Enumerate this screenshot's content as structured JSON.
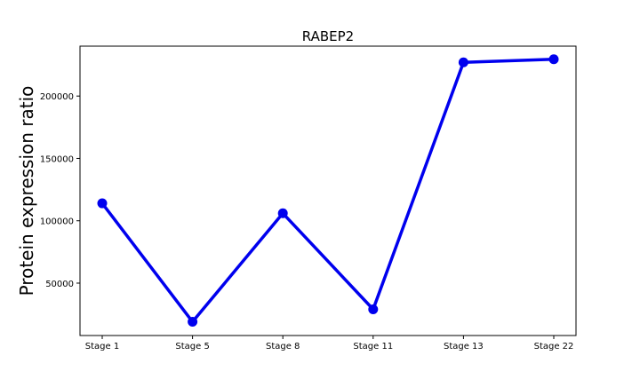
{
  "chart_data": {
    "type": "line",
    "title": "RABEP2",
    "xlabel": "",
    "ylabel": "Protein expression ratio",
    "categories": [
      "Stage 1",
      "Stage 5",
      "Stage 8",
      "Stage 11",
      "Stage 13",
      "Stage 22"
    ],
    "series": [
      {
        "values": [
          114000,
          19000,
          106000,
          29000,
          227000,
          229500
        ],
        "color": "#0000ee"
      }
    ],
    "ylim": [
      8000,
      240000
    ],
    "yticks": [
      50000,
      100000,
      150000,
      200000
    ],
    "ytick_labels": [
      "50000",
      "100000",
      "150000",
      "200000"
    ],
    "grid": false,
    "legend": "none",
    "marker": "circle"
  }
}
